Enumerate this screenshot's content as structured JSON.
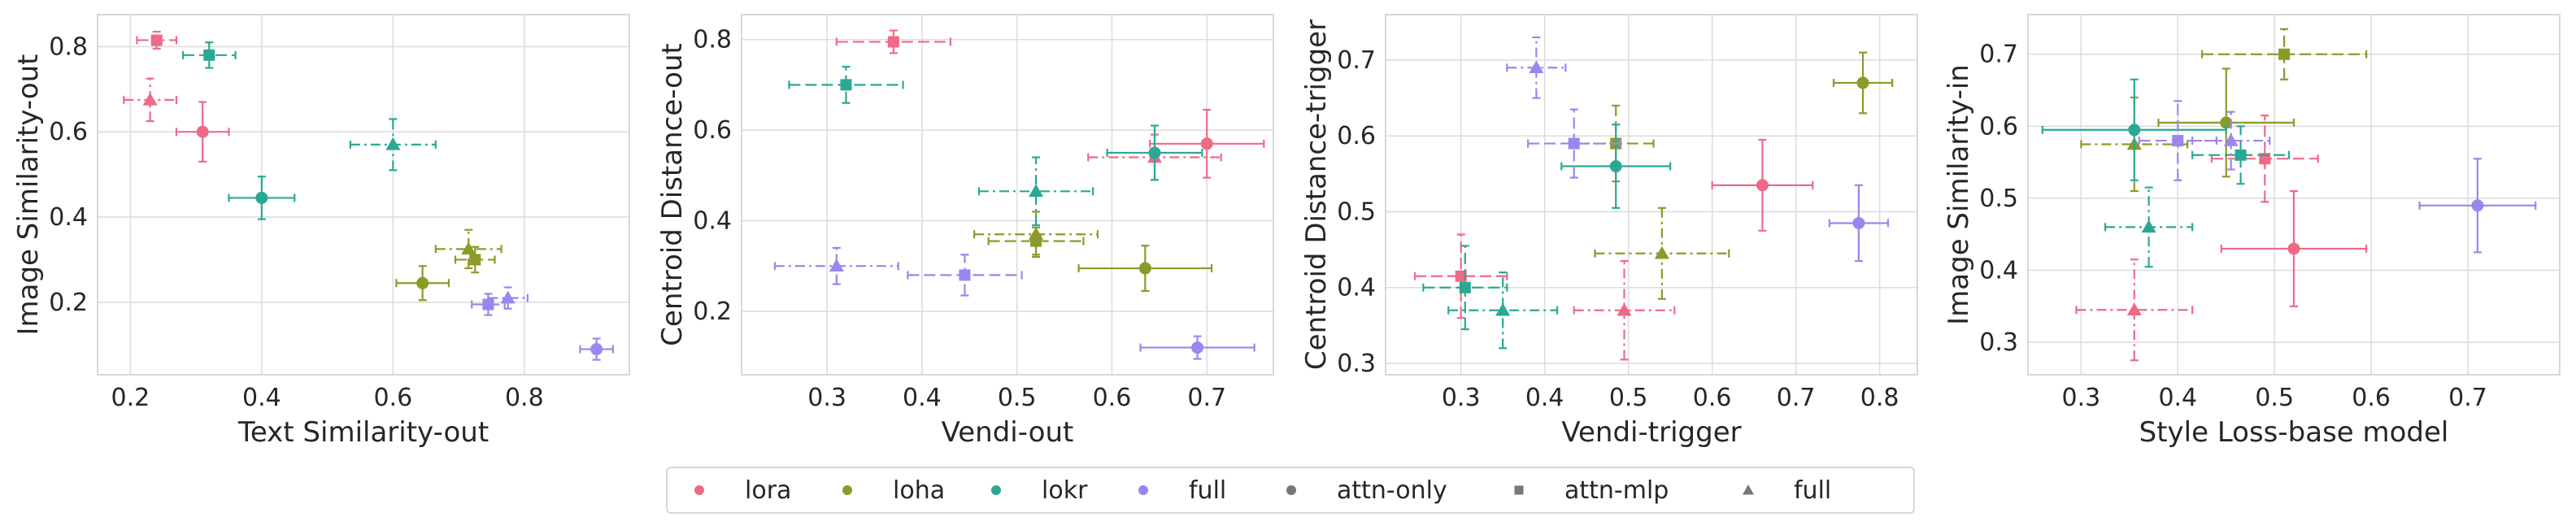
{
  "colors": {
    "lora": "#ee6a87",
    "loha": "#8c9a29",
    "lokr": "#2aa895",
    "full": "#9a86ee",
    "grid": "#dcdcdc",
    "panel_border": "#cccccc",
    "neutral_marker": "#777777"
  },
  "legend": {
    "placement": "bottom-center",
    "entries": [
      {
        "label": "lora",
        "color_key": "lora",
        "marker": "circle"
      },
      {
        "label": "loha",
        "color_key": "loha",
        "marker": "circle"
      },
      {
        "label": "lokr",
        "color_key": "lokr",
        "marker": "circle"
      },
      {
        "label": "full",
        "color_key": "full",
        "marker": "circle"
      },
      {
        "label": "attn-only",
        "color_key": "neutral_marker",
        "marker": "circle"
      },
      {
        "label": "attn-mlp",
        "color_key": "neutral_marker",
        "marker": "square"
      },
      {
        "label": "full",
        "color_key": "neutral_marker",
        "marker": "triangle"
      }
    ]
  },
  "chart_data": [
    {
      "type": "scatter",
      "xlabel": "Text Similarity-out",
      "ylabel": "Image Similarity-out",
      "xlim": [
        0.15,
        0.96
      ],
      "ylim": [
        0.03,
        0.875
      ],
      "xticks": [
        0.2,
        0.4,
        0.6,
        0.8
      ],
      "yticks": [
        0.2,
        0.4,
        0.6,
        0.8
      ],
      "grid": true,
      "points": [
        {
          "method": "lora",
          "layers": "attn-only",
          "x": 0.31,
          "y": 0.6,
          "xerr": 0.04,
          "yerr": 0.07
        },
        {
          "method": "lora",
          "layers": "attn-mlp",
          "x": 0.24,
          "y": 0.815,
          "xerr": 0.03,
          "yerr": 0.02
        },
        {
          "method": "lora",
          "layers": "full",
          "x": 0.23,
          "y": 0.675,
          "xerr": 0.04,
          "yerr": 0.05
        },
        {
          "method": "loha",
          "layers": "attn-only",
          "x": 0.645,
          "y": 0.245,
          "xerr": 0.04,
          "yerr": 0.04
        },
        {
          "method": "loha",
          "layers": "attn-mlp",
          "x": 0.725,
          "y": 0.3,
          "xerr": 0.03,
          "yerr": 0.03
        },
        {
          "method": "loha",
          "layers": "full",
          "x": 0.715,
          "y": 0.325,
          "xerr": 0.05,
          "yerr": 0.045
        },
        {
          "method": "lokr",
          "layers": "attn-only",
          "x": 0.4,
          "y": 0.445,
          "xerr": 0.05,
          "yerr": 0.05
        },
        {
          "method": "lokr",
          "layers": "attn-mlp",
          "x": 0.32,
          "y": 0.78,
          "xerr": 0.04,
          "yerr": 0.03
        },
        {
          "method": "lokr",
          "layers": "full",
          "x": 0.6,
          "y": 0.57,
          "xerr": 0.065,
          "yerr": 0.06
        },
        {
          "method": "full",
          "layers": "attn-only",
          "x": 0.91,
          "y": 0.09,
          "xerr": 0.025,
          "yerr": 0.025
        },
        {
          "method": "full",
          "layers": "attn-mlp",
          "x": 0.745,
          "y": 0.195,
          "xerr": 0.025,
          "yerr": 0.025
        },
        {
          "method": "full",
          "layers": "full",
          "x": 0.775,
          "y": 0.21,
          "xerr": 0.03,
          "yerr": 0.025
        }
      ]
    },
    {
      "type": "scatter",
      "xlabel": "Vendi-out",
      "ylabel": "Centroid Distance-out",
      "xlim": [
        0.21,
        0.77
      ],
      "ylim": [
        0.06,
        0.855
      ],
      "xticks": [
        0.3,
        0.4,
        0.5,
        0.6,
        0.7
      ],
      "yticks": [
        0.2,
        0.4,
        0.6,
        0.8
      ],
      "grid": true,
      "points": [
        {
          "method": "lora",
          "layers": "attn-only",
          "x": 0.7,
          "y": 0.57,
          "xerr": 0.06,
          "yerr": 0.075
        },
        {
          "method": "lora",
          "layers": "attn-mlp",
          "x": 0.37,
          "y": 0.795,
          "xerr": 0.06,
          "yerr": 0.025
        },
        {
          "method": "lora",
          "layers": "full",
          "x": 0.645,
          "y": 0.54,
          "xerr": 0.07,
          "yerr": 0.05
        },
        {
          "method": "loha",
          "layers": "attn-only",
          "x": 0.635,
          "y": 0.295,
          "xerr": 0.07,
          "yerr": 0.05
        },
        {
          "method": "loha",
          "layers": "attn-mlp",
          "x": 0.52,
          "y": 0.355,
          "xerr": 0.05,
          "yerr": 0.03
        },
        {
          "method": "loha",
          "layers": "full",
          "x": 0.52,
          "y": 0.37,
          "xerr": 0.065,
          "yerr": 0.05
        },
        {
          "method": "lokr",
          "layers": "attn-only",
          "x": 0.645,
          "y": 0.55,
          "xerr": 0.05,
          "yerr": 0.06
        },
        {
          "method": "lokr",
          "layers": "attn-mlp",
          "x": 0.32,
          "y": 0.7,
          "xerr": 0.06,
          "yerr": 0.04
        },
        {
          "method": "lokr",
          "layers": "full",
          "x": 0.52,
          "y": 0.465,
          "xerr": 0.06,
          "yerr": 0.075
        },
        {
          "method": "full",
          "layers": "attn-only",
          "x": 0.69,
          "y": 0.12,
          "xerr": 0.06,
          "yerr": 0.025
        },
        {
          "method": "full",
          "layers": "attn-mlp",
          "x": 0.445,
          "y": 0.28,
          "xerr": 0.06,
          "yerr": 0.045
        },
        {
          "method": "full",
          "layers": "full",
          "x": 0.31,
          "y": 0.3,
          "xerr": 0.065,
          "yerr": 0.04
        }
      ]
    },
    {
      "type": "scatter",
      "xlabel": "Vendi-trigger",
      "ylabel": "Centroid Distance-trigger",
      "xlim": [
        0.21,
        0.845
      ],
      "ylim": [
        0.285,
        0.76
      ],
      "xticks": [
        0.3,
        0.4,
        0.5,
        0.6,
        0.7,
        0.8
      ],
      "yticks": [
        0.3,
        0.4,
        0.5,
        0.6,
        0.7
      ],
      "grid": true,
      "points": [
        {
          "method": "lora",
          "layers": "attn-only",
          "x": 0.66,
          "y": 0.535,
          "xerr": 0.06,
          "yerr": 0.06
        },
        {
          "method": "lora",
          "layers": "attn-mlp",
          "x": 0.3,
          "y": 0.415,
          "xerr": 0.055,
          "yerr": 0.055
        },
        {
          "method": "lora",
          "layers": "full",
          "x": 0.495,
          "y": 0.37,
          "xerr": 0.06,
          "yerr": 0.065
        },
        {
          "method": "loha",
          "layers": "attn-only",
          "x": 0.78,
          "y": 0.67,
          "xerr": 0.035,
          "yerr": 0.04
        },
        {
          "method": "loha",
          "layers": "attn-mlp",
          "x": 0.485,
          "y": 0.59,
          "xerr": 0.045,
          "yerr": 0.05
        },
        {
          "method": "loha",
          "layers": "full",
          "x": 0.54,
          "y": 0.445,
          "xerr": 0.08,
          "yerr": 0.06
        },
        {
          "method": "lokr",
          "layers": "attn-only",
          "x": 0.485,
          "y": 0.56,
          "xerr": 0.065,
          "yerr": 0.055
        },
        {
          "method": "lokr",
          "layers": "attn-mlp",
          "x": 0.305,
          "y": 0.4,
          "xerr": 0.05,
          "yerr": 0.055
        },
        {
          "method": "lokr",
          "layers": "full",
          "x": 0.35,
          "y": 0.37,
          "xerr": 0.065,
          "yerr": 0.05
        },
        {
          "method": "full",
          "layers": "attn-only",
          "x": 0.775,
          "y": 0.485,
          "xerr": 0.035,
          "yerr": 0.05
        },
        {
          "method": "full",
          "layers": "attn-mlp",
          "x": 0.435,
          "y": 0.59,
          "xerr": 0.055,
          "yerr": 0.045
        },
        {
          "method": "full",
          "layers": "full",
          "x": 0.39,
          "y": 0.69,
          "xerr": 0.035,
          "yerr": 0.04
        }
      ]
    },
    {
      "type": "scatter",
      "xlabel": "Style Loss-base model",
      "ylabel": "Image Similarity-in",
      "xlim": [
        0.245,
        0.795
      ],
      "ylim": [
        0.255,
        0.755
      ],
      "xticks": [
        0.3,
        0.4,
        0.5,
        0.6,
        0.7
      ],
      "yticks": [
        0.3,
        0.4,
        0.5,
        0.6,
        0.7
      ],
      "grid": true,
      "points": [
        {
          "method": "lora",
          "layers": "attn-only",
          "x": 0.52,
          "y": 0.43,
          "xerr": 0.075,
          "yerr": 0.08
        },
        {
          "method": "lora",
          "layers": "attn-mlp",
          "x": 0.49,
          "y": 0.555,
          "xerr": 0.055,
          "yerr": 0.06
        },
        {
          "method": "lora",
          "layers": "full",
          "x": 0.355,
          "y": 0.345,
          "xerr": 0.06,
          "yerr": 0.07
        },
        {
          "method": "loha",
          "layers": "attn-only",
          "x": 0.45,
          "y": 0.605,
          "xerr": 0.07,
          "yerr": 0.075
        },
        {
          "method": "loha",
          "layers": "attn-mlp",
          "x": 0.51,
          "y": 0.7,
          "xerr": 0.085,
          "yerr": 0.035
        },
        {
          "method": "loha",
          "layers": "full",
          "x": 0.355,
          "y": 0.575,
          "xerr": 0.055,
          "yerr": 0.065
        },
        {
          "method": "lokr",
          "layers": "attn-only",
          "x": 0.355,
          "y": 0.595,
          "xerr": 0.095,
          "yerr": 0.07
        },
        {
          "method": "lokr",
          "layers": "attn-mlp",
          "x": 0.465,
          "y": 0.56,
          "xerr": 0.05,
          "yerr": 0.04
        },
        {
          "method": "lokr",
          "layers": "full",
          "x": 0.37,
          "y": 0.46,
          "xerr": 0.045,
          "yerr": 0.055
        },
        {
          "method": "full",
          "layers": "attn-only",
          "x": 0.71,
          "y": 0.49,
          "xerr": 0.06,
          "yerr": 0.065
        },
        {
          "method": "full",
          "layers": "attn-mlp",
          "x": 0.4,
          "y": 0.58,
          "xerr": 0.04,
          "yerr": 0.055
        },
        {
          "method": "full",
          "layers": "full",
          "x": 0.455,
          "y": 0.58,
          "xerr": 0.04,
          "yerr": 0.04
        }
      ]
    }
  ]
}
